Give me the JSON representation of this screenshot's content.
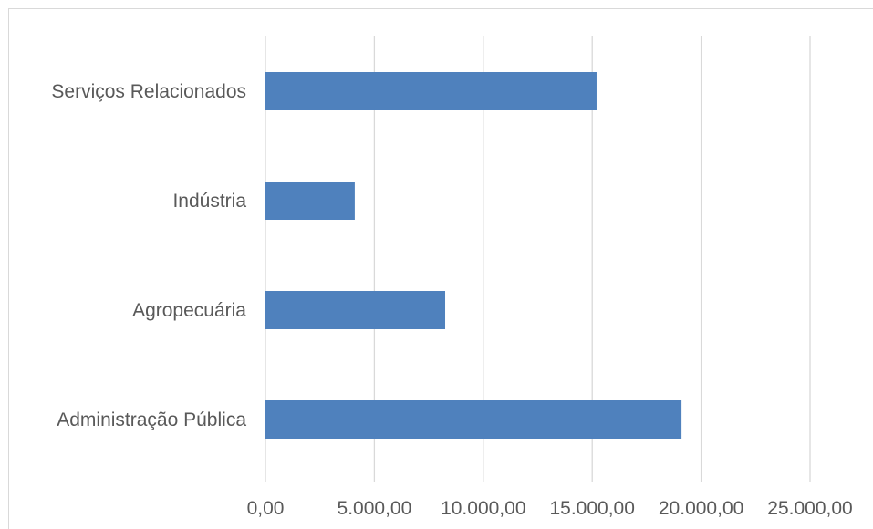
{
  "chart_data": {
    "type": "bar",
    "orientation": "horizontal",
    "categories": [
      "Serviços Relacionados",
      "Indústria",
      "Agropecuária",
      "Administração Pública"
    ],
    "values": [
      15200,
      4100,
      8250,
      19100
    ],
    "xlim": [
      0,
      25000
    ],
    "x_ticks": [
      0,
      5000,
      10000,
      15000,
      20000,
      25000
    ],
    "x_tick_labels": [
      "0,00",
      "5.000,00",
      "10.000,00",
      "15.000,00",
      "20.000,00",
      "25.000,00"
    ],
    "grid": "vertical",
    "legend": "none",
    "bar_color": "#4f81bd",
    "grid_color": "#d9d9d9",
    "label_color": "#595959"
  }
}
